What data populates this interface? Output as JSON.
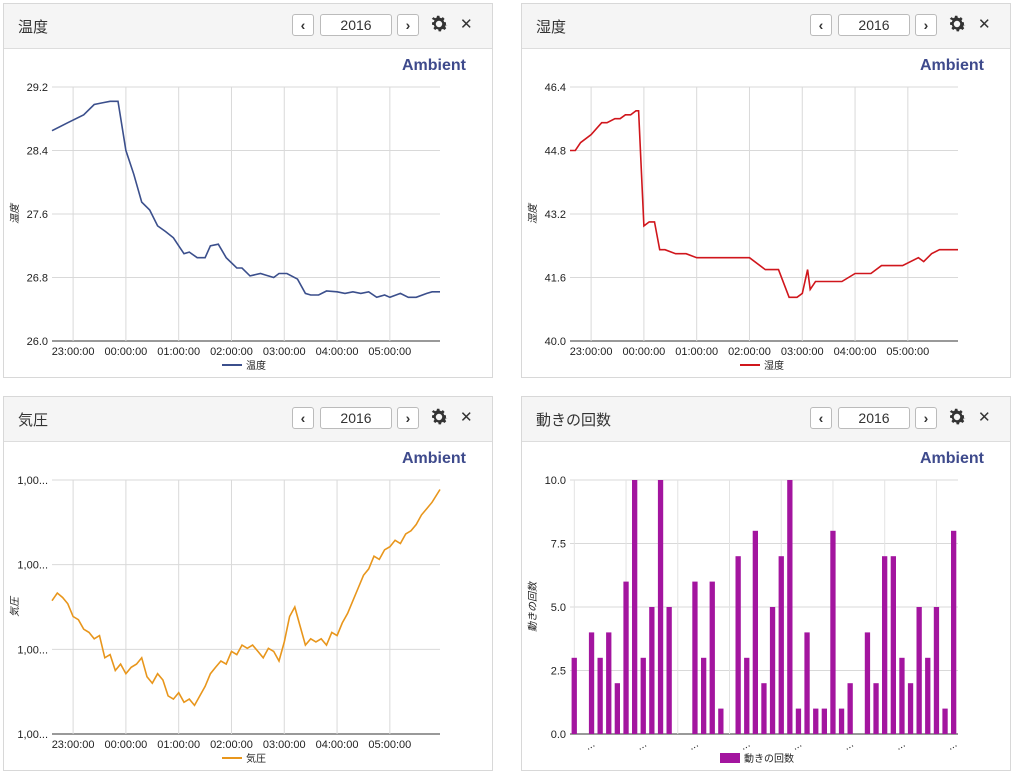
{
  "panels": [
    {
      "title": "温度",
      "year": "2016",
      "brand": "Ambient",
      "colors": {
        "line": "#3b4f8c"
      },
      "chart_data": {
        "type": "line",
        "ylabel": "温度",
        "legend": "温度",
        "ylim": [
          26.0,
          29.2
        ],
        "yticks": [
          "26.0",
          "26.8",
          "27.6",
          "28.4",
          "29.2"
        ],
        "xticks": [
          "23:00:00",
          "00:00:00",
          "01:00:00",
          "02:00:00",
          "03:00:00",
          "04:00:00",
          "05:00:00"
        ],
        "xrange": [
          22.6,
          29.95
        ],
        "x": [
          22.6,
          22.9,
          23.2,
          23.4,
          23.55,
          23.7,
          23.85,
          24.0,
          24.15,
          24.3,
          24.45,
          24.6,
          24.75,
          24.9,
          25.0,
          25.1,
          25.2,
          25.35,
          25.5,
          25.6,
          25.75,
          25.9,
          26.1,
          26.2,
          26.35,
          26.55,
          26.65,
          26.8,
          26.9,
          27.05,
          27.25,
          27.4,
          27.5,
          27.65,
          27.8,
          28.0,
          28.15,
          28.3,
          28.45,
          28.6,
          28.75,
          28.9,
          29.0,
          29.2,
          29.35,
          29.5,
          29.7,
          29.8,
          29.95
        ],
        "series": [
          {
            "values": [
              28.65,
              28.75,
              28.85,
              28.98,
              29.0,
              29.02,
              29.02,
              28.4,
              28.1,
              27.75,
              27.65,
              27.45,
              27.38,
              27.3,
              27.2,
              27.1,
              27.12,
              27.05,
              27.05,
              27.2,
              27.22,
              27.05,
              26.92,
              26.92,
              26.82,
              26.85,
              26.83,
              26.8,
              26.85,
              26.85,
              26.78,
              26.6,
              26.58,
              26.58,
              26.63,
              26.62,
              26.6,
              26.62,
              26.6,
              26.62,
              26.55,
              26.58,
              26.55,
              26.6,
              26.55,
              26.55,
              26.6,
              26.62,
              26.62
            ]
          }
        ]
      }
    },
    {
      "title": "湿度",
      "year": "2016",
      "brand": "Ambient",
      "colors": {
        "line": "#d0161c"
      },
      "chart_data": {
        "type": "line",
        "ylabel": "湿度",
        "legend": "湿度",
        "ylim": [
          40.0,
          46.4
        ],
        "yticks": [
          "40.0",
          "41.6",
          "43.2",
          "44.8",
          "46.4"
        ],
        "xticks": [
          "23:00:00",
          "00:00:00",
          "01:00:00",
          "02:00:00",
          "03:00:00",
          "04:00:00",
          "05:00:00"
        ],
        "xrange": [
          22.6,
          29.95
        ],
        "x": [
          22.6,
          22.7,
          22.8,
          23.0,
          23.2,
          23.3,
          23.45,
          23.55,
          23.65,
          23.75,
          23.85,
          23.9,
          24.0,
          24.1,
          24.2,
          24.3,
          24.4,
          24.6,
          24.8,
          25.0,
          25.5,
          26.0,
          26.3,
          26.5,
          26.55,
          26.75,
          26.9,
          27.0,
          27.1,
          27.15,
          27.25,
          27.5,
          27.75,
          28.0,
          28.3,
          28.5,
          28.7,
          28.9,
          29.2,
          29.3,
          29.45,
          29.6,
          29.95
        ],
        "series": [
          {
            "values": [
              44.8,
              44.8,
              45.0,
              45.2,
              45.5,
              45.5,
              45.6,
              45.6,
              45.7,
              45.7,
              45.8,
              45.8,
              42.9,
              43.0,
              43.0,
              42.3,
              42.3,
              42.2,
              42.2,
              42.1,
              42.1,
              42.1,
              41.8,
              41.8,
              41.8,
              41.1,
              41.1,
              41.2,
              41.8,
              41.3,
              41.5,
              41.5,
              41.5,
              41.7,
              41.7,
              41.9,
              41.9,
              41.9,
              42.1,
              42.0,
              42.2,
              42.3,
              42.3
            ]
          }
        ]
      }
    },
    {
      "title": "気圧",
      "year": "2016",
      "brand": "Ambient",
      "colors": {
        "line": "#e8961c"
      },
      "chart_data": {
        "type": "line",
        "ylabel": "気圧",
        "legend": "気圧",
        "ylim": [
          0,
          4
        ],
        "yticks": [
          "1,00...",
          "1,00...",
          "1,00...",
          "1,00..."
        ],
        "xticks": [
          "23:00:00",
          "00:00:00",
          "01:00:00",
          "02:00:00",
          "03:00:00",
          "04:00:00",
          "05:00:00"
        ],
        "xrange": [
          22.6,
          29.95
        ],
        "x": [
          22.6,
          22.7,
          22.8,
          22.9,
          23.0,
          23.1,
          23.2,
          23.3,
          23.4,
          23.5,
          23.6,
          23.7,
          23.8,
          23.9,
          24.0,
          24.1,
          24.2,
          24.3,
          24.4,
          24.5,
          24.6,
          24.7,
          24.8,
          24.9,
          25.0,
          25.1,
          25.2,
          25.3,
          25.4,
          25.5,
          25.6,
          25.7,
          25.8,
          25.9,
          26.0,
          26.1,
          26.2,
          26.3,
          26.4,
          26.5,
          26.6,
          26.7,
          26.8,
          26.9,
          27.0,
          27.1,
          27.2,
          27.3,
          27.4,
          27.5,
          27.6,
          27.7,
          27.8,
          27.9,
          28.0,
          28.1,
          28.2,
          28.3,
          28.4,
          28.5,
          28.6,
          28.7,
          28.8,
          28.9,
          29.0,
          29.1,
          29.2,
          29.3,
          29.4,
          29.5,
          29.6,
          29.7,
          29.8,
          29.95
        ],
        "series": [
          {
            "values": [
              2.1,
              2.22,
              2.15,
              2.05,
              1.85,
              1.8,
              1.65,
              1.6,
              1.5,
              1.55,
              1.2,
              1.25,
              1.0,
              1.1,
              0.95,
              1.05,
              1.1,
              1.2,
              0.9,
              0.8,
              0.95,
              0.85,
              0.6,
              0.55,
              0.65,
              0.5,
              0.55,
              0.45,
              0.6,
              0.75,
              0.95,
              1.05,
              1.15,
              1.1,
              1.3,
              1.25,
              1.4,
              1.35,
              1.4,
              1.3,
              1.2,
              1.35,
              1.3,
              1.15,
              1.45,
              1.85,
              2.0,
              1.7,
              1.4,
              1.5,
              1.45,
              1.5,
              1.4,
              1.6,
              1.55,
              1.75,
              1.9,
              2.1,
              2.3,
              2.5,
              2.6,
              2.8,
              2.75,
              2.9,
              2.95,
              3.05,
              3.0,
              3.15,
              3.2,
              3.3,
              3.45,
              3.55,
              3.65,
              3.85
            ]
          }
        ]
      }
    },
    {
      "title": "動きの回数",
      "year": "2016",
      "brand": "Ambient",
      "colors": {
        "bar": "#a3159f"
      },
      "chart_data": {
        "type": "bar",
        "ylabel": "動きの回数",
        "legend": "動きの回数",
        "ylim": [
          0,
          10
        ],
        "yticks": [
          "0.0",
          "2.5",
          "5.0",
          "7.5",
          "10.0"
        ],
        "xticklabel": "...",
        "values": [
          3,
          0,
          4,
          3,
          4,
          2,
          6,
          10,
          3,
          5,
          10,
          5,
          0,
          0,
          6,
          3,
          6,
          1,
          0,
          7,
          3,
          8,
          2,
          5,
          7,
          10,
          1,
          4,
          1,
          1,
          8,
          1,
          2,
          0,
          4,
          2,
          7,
          7,
          3,
          2,
          5,
          3,
          5,
          1,
          8
        ]
      }
    }
  ]
}
